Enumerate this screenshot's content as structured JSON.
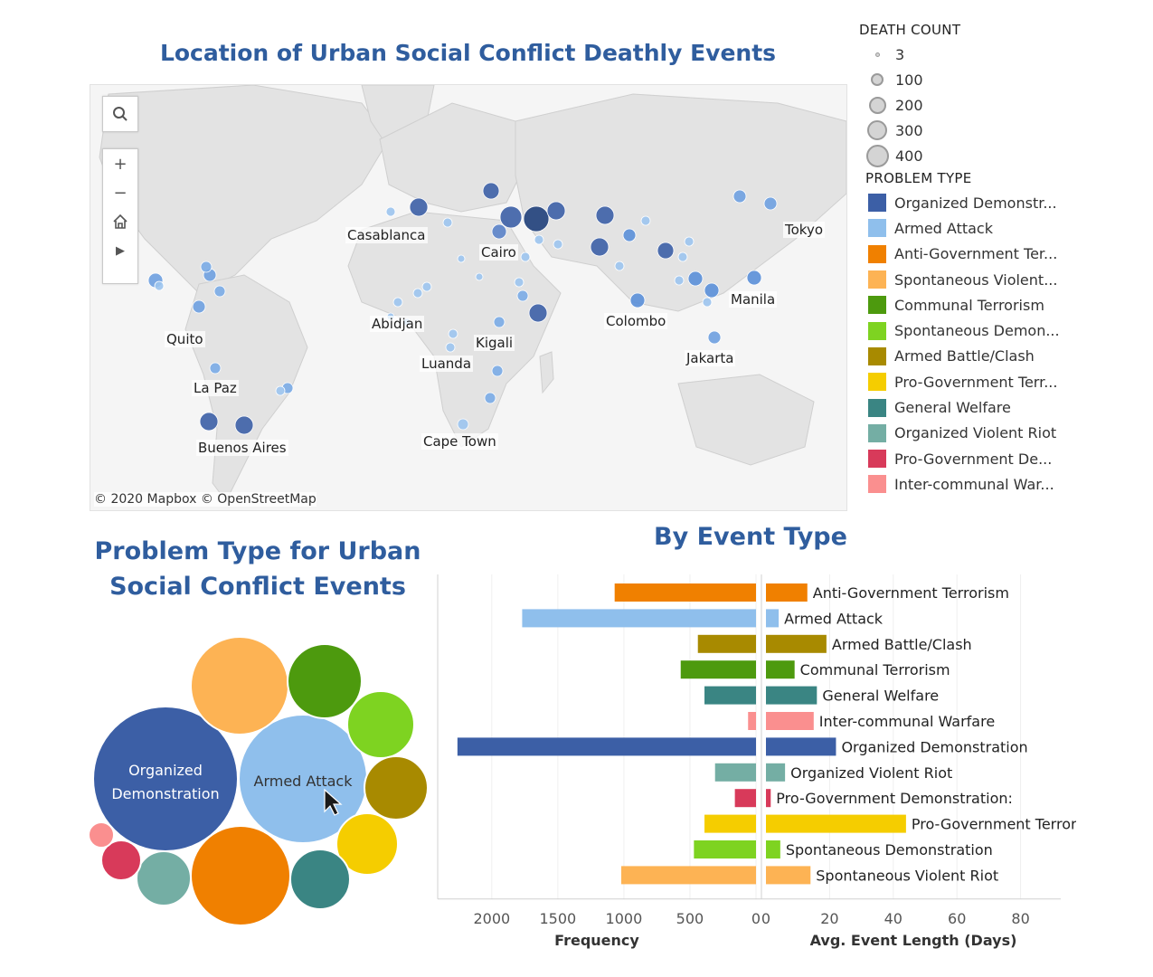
{
  "map": {
    "title": "Location of Urban Social Conflict Deathly Events",
    "attribution": "© 2020 Mapbox  © OpenStreetMap",
    "cities": [
      "Casablanca",
      "Cairo",
      "Tokyo",
      "Abidjan",
      "Kigali",
      "Luanda",
      "Colombo",
      "Manila",
      "Jakarta",
      "Quito",
      "La Paz",
      "Buenos Aires",
      "Cape Town"
    ],
    "tools": {
      "search": "search-icon",
      "zoom_in": "+",
      "zoom_out": "−",
      "home": "home-icon",
      "play": "▶"
    }
  },
  "legend": {
    "death_count_title": "DEATH COUNT",
    "death_counts": [
      "3",
      "100",
      "200",
      "300",
      "400"
    ],
    "problem_type_title": "PROBLEM TYPE",
    "problem_types": [
      {
        "label": "Organized Demonstr...",
        "color": "#3c5fa6"
      },
      {
        "label": "Armed Attack",
        "color": "#8fbfec"
      },
      {
        "label": "Anti-Government Ter...",
        "color": "#f08000"
      },
      {
        "label": "Spontaneous Violent...",
        "color": "#fdb354"
      },
      {
        "label": "Communal Terrorism",
        "color": "#4d9a0e"
      },
      {
        "label": "Spontaneous Demon...",
        "color": "#7ed321"
      },
      {
        "label": "Armed Battle/Clash",
        "color": "#a88a00"
      },
      {
        "label": "Pro-Government Terr...",
        "color": "#f5cd00"
      },
      {
        "label": "General Welfare",
        "color": "#3a8583"
      },
      {
        "label": "Organized Violent Riot",
        "color": "#74aea4"
      },
      {
        "label": "Pro-Government De...",
        "color": "#d83a5a"
      },
      {
        "label": "Inter-communal War...",
        "color": "#fa8f8f"
      }
    ]
  },
  "bubble": {
    "title_line1": "Problem Type for Urban",
    "title_line2": "Social Conflict Events",
    "labels": {
      "organized_1": "Organized",
      "organized_2": "Demonstration",
      "armed": "Armed Attack"
    }
  },
  "bar_title": "By Event Type",
  "axis_labels": {
    "frequency": "Frequency",
    "avg_length": "Avg. Event Length (Days)"
  },
  "chart_data": {
    "type": "bar",
    "categories": [
      "Anti-Government Terrorism",
      "Armed Attack",
      "Armed Battle/Clash",
      "Communal Terrorism",
      "General Welfare",
      "Inter-communal Warfare",
      "Organized Demonstration",
      "Organized Violent Riot",
      "Pro-Government Demonstration:",
      "Pro-Government Terrorism",
      "Spontaneous Demonstration",
      "Spontaneous Violent Riot"
    ],
    "colors": [
      "#f08000",
      "#8fbfec",
      "#a88a00",
      "#4d9a0e",
      "#3a8583",
      "#fa8f8f",
      "#3c5fa6",
      "#74aea4",
      "#d83a5a",
      "#f5cd00",
      "#7ed321",
      "#fdb354"
    ],
    "series": [
      {
        "name": "Frequency",
        "values": [
          1070,
          1770,
          440,
          570,
          390,
          60,
          2260,
          310,
          160,
          390,
          470,
          1020
        ]
      },
      {
        "name": "Avg. Event Length (Days)",
        "values": [
          13,
          4,
          19,
          9,
          16,
          15,
          22,
          6,
          1.5,
          44,
          4.5,
          14
        ]
      }
    ],
    "xlim_frequency": [
      0,
      2300
    ],
    "xlim_length": [
      0,
      90
    ],
    "ticks_frequency": [
      "2000",
      "1500",
      "1000",
      "500",
      "0"
    ],
    "ticks_length": [
      "0",
      "20",
      "40",
      "60",
      "80"
    ]
  }
}
